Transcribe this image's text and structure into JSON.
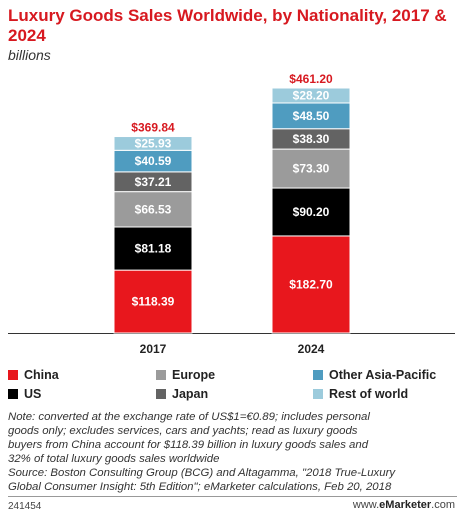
{
  "header": {
    "title": "Luxury Goods Sales Worldwide, by Nationality, 2017 & 2024",
    "subtitle": "billions"
  },
  "chart_data": {
    "type": "bar",
    "stacked": true,
    "categories": [
      "2017",
      "2024"
    ],
    "series": [
      {
        "name": "China",
        "color": "#e8171d",
        "values": [
          118.39,
          182.7
        ],
        "labels": [
          "$118.39",
          "$182.70"
        ]
      },
      {
        "name": "US",
        "color": "#000000",
        "values": [
          81.18,
          90.2
        ],
        "labels": [
          "$81.18",
          "$90.20"
        ]
      },
      {
        "name": "Europe",
        "color": "#9b9b9b",
        "values": [
          66.53,
          73.3
        ],
        "labels": [
          "$66.53",
          "$73.30"
        ]
      },
      {
        "name": "Japan",
        "color": "#636363",
        "values": [
          37.21,
          38.3
        ],
        "labels": [
          "$37.21",
          "$38.30"
        ]
      },
      {
        "name": "Other Asia-Pacific",
        "color": "#4f9cc0",
        "values": [
          40.59,
          48.5
        ],
        "labels": [
          "$40.59",
          "$48.50"
        ]
      },
      {
        "name": "Rest of world",
        "color": "#9ccbdc",
        "values": [
          25.93,
          28.2
        ],
        "labels": [
          "$25.93",
          "$28.20"
        ]
      }
    ],
    "totals": [
      369.84,
      461.2
    ],
    "total_labels": [
      "$369.84",
      "$461.20"
    ],
    "ylim": [
      0,
      461.2
    ],
    "grid": false,
    "legend_position": "bottom"
  },
  "note": [
    "Note: converted at the exchange rate of US$1=€0.89; includes personal",
    "goods only; excludes services, cars and yachts; read as luxury goods",
    "buyers from China account for $118.39 billion in luxury goods sales and",
    "32% of total luxury goods sales worldwide",
    "Source: Boston Consulting Group (BCG) and Altagamma, \"2018 True-Luxury",
    "Global Consumer Insight: 5th Edition\"; eMarketer calculations, Feb 20, 2018"
  ],
  "footer": {
    "id": "241454",
    "brand_prefix": "www.",
    "brand_name": "eMarketer",
    "brand_suffix": ".com"
  }
}
